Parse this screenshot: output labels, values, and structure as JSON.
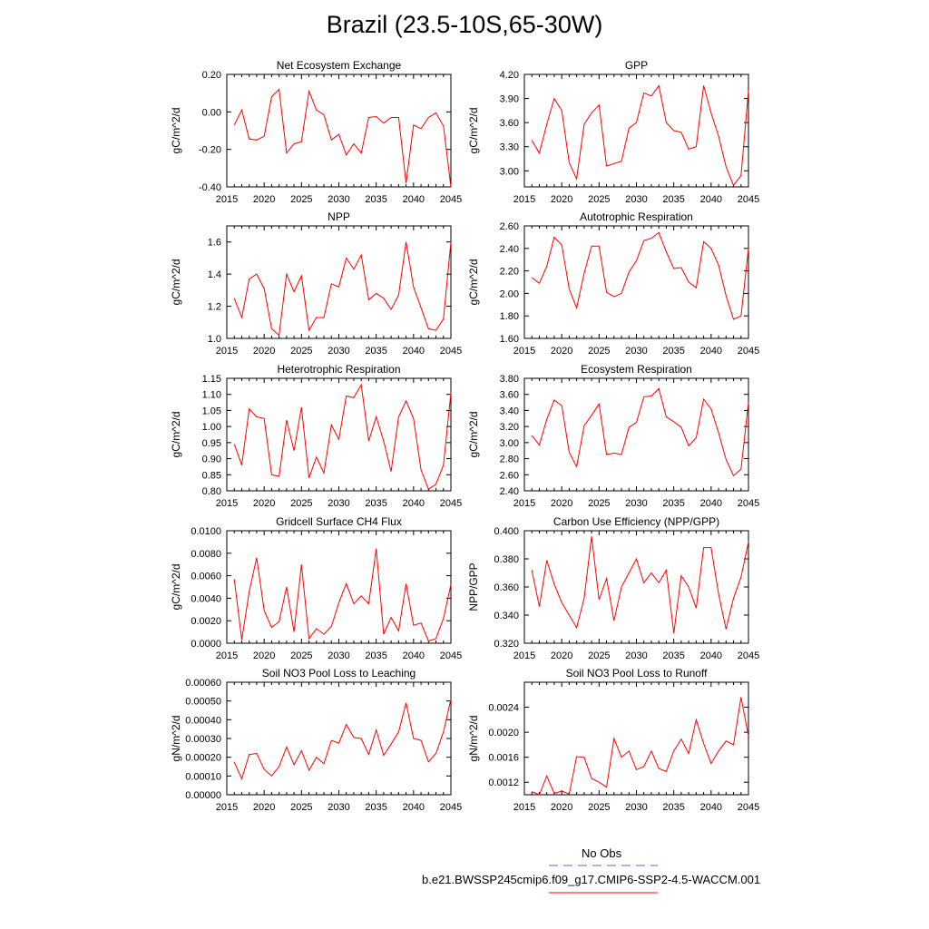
{
  "page": {
    "title": "Brazil (23.5-10S,65-30W)"
  },
  "legend": {
    "obs_label": "No Obs",
    "obs_color": "#6666cc",
    "model_label": "b.e21.BWSSP245cmip6.f09_g17.CMIP6-SSP2-4.5-WACCM.001",
    "model_color": "#ff0000"
  },
  "chart_data": [
    {
      "type": "line",
      "title": "Net Ecosystem Exchange",
      "ylabel": "gC/m^2/d",
      "xlim": [
        2015,
        2045
      ],
      "ylim": [
        -0.4,
        0.2
      ],
      "xticks": [
        "2015",
        "2020",
        "2025",
        "2030",
        "2035",
        "2040",
        "2045"
      ],
      "yticks": [
        "-0.40",
        "-0.20",
        "0.00",
        "0.20"
      ],
      "x": [
        2016,
        2017,
        2018,
        2019,
        2020,
        2021,
        2022,
        2023,
        2024,
        2025,
        2026,
        2027,
        2028,
        2029,
        2030,
        2031,
        2032,
        2033,
        2034,
        2035,
        2036,
        2037,
        2038,
        2039,
        2040,
        2041,
        2042,
        2043,
        2044,
        2045
      ],
      "series": [
        {
          "values": [
            -0.07,
            0.01,
            -0.145,
            -0.15,
            -0.13,
            0.08,
            0.12,
            -0.22,
            -0.17,
            -0.16,
            0.11,
            0.01,
            -0.015,
            -0.15,
            -0.12,
            -0.23,
            -0.17,
            -0.22,
            -0.03,
            -0.025,
            -0.06,
            -0.03,
            -0.03,
            -0.38,
            -0.07,
            -0.09,
            -0.03,
            -0.005,
            -0.075,
            -0.4
          ]
        }
      ]
    },
    {
      "type": "line",
      "title": "GPP",
      "ylabel": "gC/m^2/d",
      "xlim": [
        2015,
        2045
      ],
      "ylim": [
        2.8,
        4.2
      ],
      "xticks": [
        "2015",
        "2020",
        "2025",
        "2030",
        "2035",
        "2040",
        "2045"
      ],
      "yticks": [
        "3.00",
        "3.30",
        "3.60",
        "3.90",
        "4.20"
      ],
      "x": [
        2016,
        2017,
        2018,
        2019,
        2020,
        2021,
        2022,
        2023,
        2024,
        2025,
        2026,
        2027,
        2028,
        2029,
        2030,
        2031,
        2032,
        2033,
        2034,
        2035,
        2036,
        2037,
        2038,
        2039,
        2040,
        2041,
        2042,
        2043,
        2044,
        2045
      ],
      "series": [
        {
          "values": [
            3.38,
            3.22,
            3.58,
            3.9,
            3.75,
            3.1,
            2.9,
            3.58,
            3.72,
            3.82,
            3.06,
            3.09,
            3.12,
            3.53,
            3.6,
            3.97,
            3.93,
            4.06,
            3.6,
            3.5,
            3.48,
            3.27,
            3.3,
            4.06,
            3.72,
            3.43,
            3.05,
            2.82,
            2.94,
            4.0
          ]
        }
      ]
    },
    {
      "type": "line",
      "title": "NPP",
      "ylabel": "gC/m^2/d",
      "xlim": [
        2015,
        2045
      ],
      "ylim": [
        1.0,
        1.7
      ],
      "xticks": [
        "2015",
        "2020",
        "2025",
        "2030",
        "2035",
        "2040",
        "2045"
      ],
      "yticks": [
        "1.0",
        "1.2",
        "1.4",
        "1.6"
      ],
      "x": [
        2016,
        2017,
        2018,
        2019,
        2020,
        2021,
        2022,
        2023,
        2024,
        2025,
        2026,
        2027,
        2028,
        2029,
        2030,
        2031,
        2032,
        2033,
        2034,
        2035,
        2036,
        2037,
        2038,
        2039,
        2040,
        2041,
        2042,
        2043,
        2044,
        2045
      ],
      "series": [
        {
          "values": [
            1.25,
            1.13,
            1.37,
            1.4,
            1.31,
            1.06,
            1.02,
            1.4,
            1.29,
            1.39,
            1.05,
            1.13,
            1.13,
            1.34,
            1.32,
            1.5,
            1.43,
            1.52,
            1.24,
            1.28,
            1.25,
            1.18,
            1.27,
            1.6,
            1.32,
            1.19,
            1.06,
            1.05,
            1.12,
            1.6
          ]
        }
      ]
    },
    {
      "type": "line",
      "title": "Autotrophic Respiration",
      "ylabel": "gC/m^2/d",
      "xlim": [
        2015,
        2045
      ],
      "ylim": [
        1.6,
        2.6
      ],
      "xticks": [
        "2015",
        "2020",
        "2025",
        "2030",
        "2035",
        "2040",
        "2045"
      ],
      "yticks": [
        "1.60",
        "1.80",
        "2.00",
        "2.20",
        "2.40",
        "2.60"
      ],
      "x": [
        2016,
        2017,
        2018,
        2019,
        2020,
        2021,
        2022,
        2023,
        2024,
        2025,
        2026,
        2027,
        2028,
        2029,
        2030,
        2031,
        2032,
        2033,
        2034,
        2035,
        2036,
        2037,
        2038,
        2039,
        2040,
        2041,
        2042,
        2043,
        2044,
        2045
      ],
      "series": [
        {
          "values": [
            2.14,
            2.09,
            2.24,
            2.5,
            2.43,
            2.04,
            1.87,
            2.18,
            2.42,
            2.42,
            2.01,
            1.97,
            2.0,
            2.19,
            2.29,
            2.47,
            2.49,
            2.54,
            2.37,
            2.22,
            2.23,
            2.1,
            2.05,
            2.46,
            2.4,
            2.25,
            1.98,
            1.77,
            1.8,
            2.4
          ]
        }
      ]
    },
    {
      "type": "line",
      "title": "Heterotrophic Respiration",
      "ylabel": "gC/m^2/d",
      "xlim": [
        2015,
        2045
      ],
      "ylim": [
        0.8,
        1.15
      ],
      "xticks": [
        "2015",
        "2020",
        "2025",
        "2030",
        "2035",
        "2040",
        "2045"
      ],
      "yticks": [
        "0.80",
        "0.85",
        "0.90",
        "0.95",
        "1.00",
        "1.05",
        "1.10",
        "1.15"
      ],
      "x": [
        2016,
        2017,
        2018,
        2019,
        2020,
        2021,
        2022,
        2023,
        2024,
        2025,
        2026,
        2027,
        2028,
        2029,
        2030,
        2031,
        2032,
        2033,
        2034,
        2035,
        2036,
        2037,
        2038,
        2039,
        2040,
        2041,
        2042,
        2043,
        2044,
        2045
      ],
      "series": [
        {
          "values": [
            0.945,
            0.88,
            1.055,
            1.03,
            1.025,
            0.85,
            0.845,
            1.02,
            0.925,
            1.06,
            0.84,
            0.905,
            0.855,
            1.005,
            0.96,
            1.095,
            1.09,
            1.13,
            0.955,
            1.03,
            0.955,
            0.86,
            1.03,
            1.08,
            1.025,
            0.865,
            0.805,
            0.82,
            0.88,
            1.105
          ]
        }
      ]
    },
    {
      "type": "line",
      "title": "Ecosystem Respiration",
      "ylabel": "gC/m^2/d",
      "xlim": [
        2015,
        2045
      ],
      "ylim": [
        2.4,
        3.8
      ],
      "xticks": [
        "2015",
        "2020",
        "2025",
        "2030",
        "2035",
        "2040",
        "2045"
      ],
      "yticks": [
        "2.40",
        "2.60",
        "2.80",
        "3.00",
        "3.20",
        "3.40",
        "3.60",
        "3.80"
      ],
      "x": [
        2016,
        2017,
        2018,
        2019,
        2020,
        2021,
        2022,
        2023,
        2024,
        2025,
        2026,
        2027,
        2028,
        2029,
        2030,
        2031,
        2032,
        2033,
        2034,
        2035,
        2036,
        2037,
        2038,
        2039,
        2040,
        2041,
        2042,
        2043,
        2044,
        2045
      ],
      "series": [
        {
          "values": [
            3.09,
            2.97,
            3.29,
            3.53,
            3.46,
            2.88,
            2.7,
            3.21,
            3.34,
            3.48,
            2.85,
            2.87,
            2.85,
            3.19,
            3.25,
            3.57,
            3.58,
            3.67,
            3.32,
            3.26,
            3.19,
            2.96,
            3.06,
            3.54,
            3.42,
            3.12,
            2.79,
            2.59,
            2.67,
            3.5
          ]
        }
      ]
    },
    {
      "type": "line",
      "title": "Gridcell Surface CH4 Flux",
      "ylabel": "gC/m^2/d",
      "xlim": [
        2015,
        2045
      ],
      "ylim": [
        0.0,
        0.01
      ],
      "xticks": [
        "2015",
        "2020",
        "2025",
        "2030",
        "2035",
        "2040",
        "2045"
      ],
      "yticks": [
        "0.0000",
        "0.0020",
        "0.0040",
        "0.0060",
        "0.0080",
        "0.0100"
      ],
      "x": [
        2016,
        2017,
        2018,
        2019,
        2020,
        2021,
        2022,
        2023,
        2024,
        2025,
        2026,
        2027,
        2028,
        2029,
        2030,
        2031,
        2032,
        2033,
        2034,
        2035,
        2036,
        2037,
        2038,
        2039,
        2040,
        2041,
        2042,
        2043,
        2044,
        2045
      ],
      "series": [
        {
          "values": [
            0.0057,
            0.0003,
            0.0046,
            0.0076,
            0.0029,
            0.0014,
            0.0019,
            0.005,
            0.001,
            0.007,
            0.0004,
            0.0013,
            0.0008,
            0.0015,
            0.0036,
            0.0053,
            0.0035,
            0.0042,
            0.0035,
            0.0084,
            0.0008,
            0.0023,
            0.0011,
            0.0053,
            0.0016,
            0.0018,
            0.0002,
            0.0004,
            0.0022,
            0.0052
          ]
        }
      ]
    },
    {
      "type": "line",
      "title": "Carbon Use Efficiency (NPP/GPP)",
      "ylabel": "NPP/GPP",
      "xlim": [
        2015,
        2045
      ],
      "ylim": [
        0.32,
        0.4
      ],
      "xticks": [
        "2015",
        "2020",
        "2025",
        "2030",
        "2035",
        "2040",
        "2045"
      ],
      "yticks": [
        "0.320",
        "0.340",
        "0.360",
        "0.380",
        "0.400"
      ],
      "x": [
        2016,
        2017,
        2018,
        2019,
        2020,
        2021,
        2022,
        2023,
        2024,
        2025,
        2026,
        2027,
        2028,
        2029,
        2030,
        2031,
        2032,
        2033,
        2034,
        2035,
        2036,
        2037,
        2038,
        2039,
        2040,
        2041,
        2042,
        2043,
        2044,
        2045
      ],
      "series": [
        {
          "values": [
            0.372,
            0.346,
            0.379,
            0.362,
            0.349,
            0.34,
            0.331,
            0.352,
            0.396,
            0.351,
            0.366,
            0.336,
            0.36,
            0.37,
            0.38,
            0.363,
            0.37,
            0.363,
            0.372,
            0.327,
            0.368,
            0.36,
            0.345,
            0.388,
            0.388,
            0.355,
            0.33,
            0.352,
            0.367,
            0.392
          ]
        }
      ]
    },
    {
      "type": "line",
      "title": "Soil NO3 Pool Loss to Leaching",
      "ylabel": "gN/m^2/d",
      "xlim": [
        2015,
        2045
      ],
      "ylim": [
        0.0,
        0.0006
      ],
      "xticks": [
        "2015",
        "2020",
        "2025",
        "2030",
        "2035",
        "2040",
        "2045"
      ],
      "yticks": [
        "0.00000",
        "0.00010",
        "0.00020",
        "0.00030",
        "0.00040",
        "0.00050",
        "0.00060"
      ],
      "x": [
        2016,
        2017,
        2018,
        2019,
        2020,
        2021,
        2022,
        2023,
        2024,
        2025,
        2026,
        2027,
        2028,
        2029,
        2030,
        2031,
        2032,
        2033,
        2034,
        2035,
        2036,
        2037,
        2038,
        2039,
        2040,
        2041,
        2042,
        2043,
        2044,
        2045
      ],
      "series": [
        {
          "values": [
            0.000175,
            8.5e-05,
            0.000215,
            0.00022,
            0.000135,
            0.0001,
            0.00015,
            0.000255,
            0.00016,
            0.000235,
            0.00013,
            0.0002,
            0.000165,
            0.00029,
            0.000275,
            0.000375,
            0.000305,
            0.0003,
            0.000215,
            0.000345,
            0.00021,
            0.00027,
            0.000335,
            0.00049,
            0.0003,
            0.00029,
            0.000175,
            0.00022,
            0.000335,
            0.00051
          ]
        }
      ]
    },
    {
      "type": "line",
      "title": "Soil NO3 Pool Loss to Runoff",
      "ylabel": "gN/m^2/d",
      "xlim": [
        2015,
        2045
      ],
      "ylim": [
        0.001,
        0.0028
      ],
      "xticks": [
        "2015",
        "2020",
        "2025",
        "2030",
        "2035",
        "2040",
        "2045"
      ],
      "yticks": [
        "0.0012",
        "0.0016",
        "0.0020",
        "0.0024"
      ],
      "x": [
        2016,
        2017,
        2018,
        2019,
        2020,
        2021,
        2022,
        2023,
        2024,
        2025,
        2026,
        2027,
        2028,
        2029,
        2030,
        2031,
        2032,
        2033,
        2034,
        2035,
        2036,
        2037,
        2038,
        2039,
        2040,
        2041,
        2042,
        2043,
        2044,
        2045
      ],
      "series": [
        {
          "values": [
            0.00105,
            0.001,
            0.0013,
            0.00102,
            0.00106,
            0.00101,
            0.00161,
            0.0016,
            0.00126,
            0.0012,
            0.00112,
            0.0019,
            0.0016,
            0.0017,
            0.0014,
            0.00145,
            0.0017,
            0.00142,
            0.00137,
            0.0017,
            0.00189,
            0.00166,
            0.0022,
            0.00182,
            0.0015,
            0.0017,
            0.00186,
            0.0018,
            0.00256,
            0.00194
          ]
        }
      ]
    }
  ]
}
